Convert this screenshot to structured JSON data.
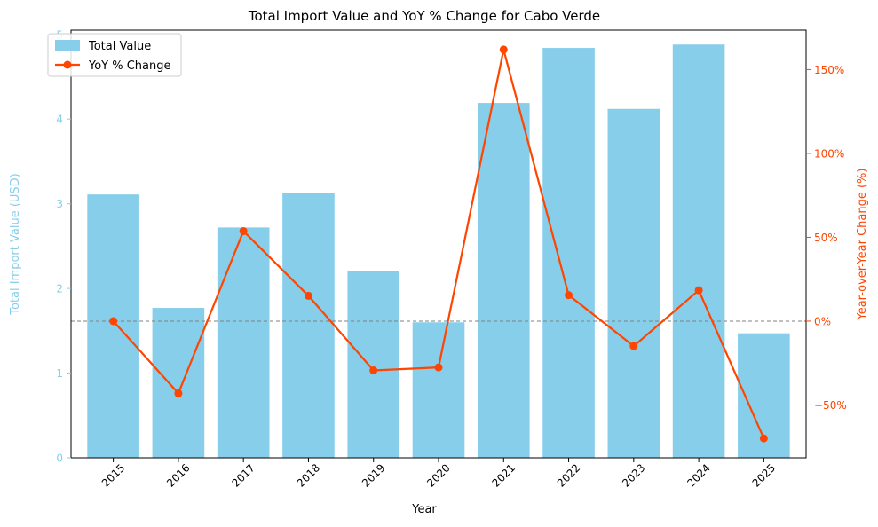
{
  "chart_data": {
    "type": "bar",
    "title": "Total Import Value and YoY % Change for Cabo Verde",
    "xlabel": "Year",
    "categories": [
      "2015",
      "2016",
      "2017",
      "2018",
      "2019",
      "2020",
      "2021",
      "2022",
      "2023",
      "2024",
      "2025"
    ],
    "series": [
      {
        "name": "Total Value",
        "type": "bar",
        "axis": "left",
        "values": [
          3.11,
          1.77,
          2.72,
          3.13,
          2.21,
          1.6,
          4.19,
          4.84,
          4.12,
          4.88,
          1.47
        ]
      },
      {
        "name": "YoY % Change",
        "type": "line",
        "axis": "right",
        "values": [
          0.0,
          -43.1,
          53.7,
          15.1,
          -29.4,
          -27.6,
          161.9,
          15.5,
          -14.9,
          18.4,
          -69.9
        ]
      }
    ],
    "y_left": {
      "label": "Total Import Value (USD)",
      "ylim": [
        0,
        5.05
      ],
      "ticks": [
        0,
        1,
        2,
        3,
        4,
        5
      ],
      "tick_labels": [
        "0",
        "1",
        "2",
        "3",
        "4",
        "5"
      ]
    },
    "y_right": {
      "label": "Year-over-Year Change (%)",
      "ylim": [
        -81.5,
        173.5
      ],
      "ticks": [
        -50,
        0,
        50,
        100,
        150
      ],
      "tick_labels": [
        "−50%",
        "0%",
        "50%",
        "100%",
        "150%"
      ]
    },
    "reference_line": {
      "axis": "right",
      "value": 0,
      "style": "dashed"
    },
    "legend": {
      "placement": "top-left",
      "entries": [
        "Total Value",
        "YoY % Change"
      ]
    },
    "grid": false,
    "colors": {
      "bar": "#87ceeb",
      "line": "#ff4500",
      "left_axis": "#87ceeb",
      "right_axis": "#ff4500",
      "reference": "#808080"
    }
  }
}
